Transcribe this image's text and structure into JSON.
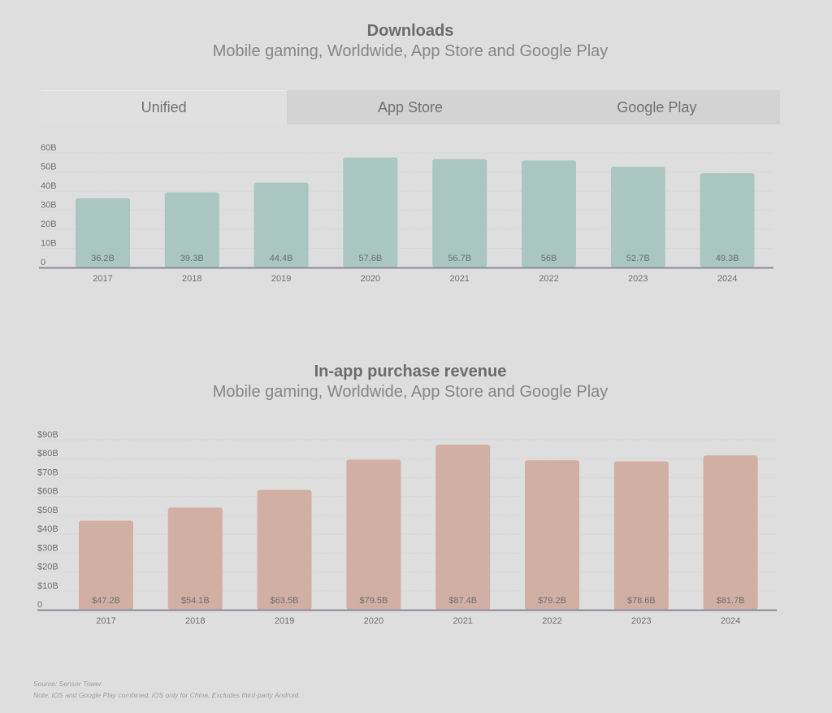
{
  "charts_text": {
    "downloads": {
      "title": "Downloads",
      "subtitle": "Mobile gaming, Worldwide, App Store and Google Play"
    },
    "revenue": {
      "title": "In-app purchase revenue",
      "subtitle": "Mobile gaming, Worldwide, App Store and Google Play"
    }
  },
  "tabs": [
    {
      "label": "Unified",
      "active": true
    },
    {
      "label": "App Store",
      "active": false
    },
    {
      "label": "Google Play",
      "active": false
    }
  ],
  "footer": {
    "source": "Source: Sensor Tower",
    "note": "Note: iOS and Google Play combined. iOS only for China. Excludes third-party Android."
  },
  "colors": {
    "downloads_bar": "#a9c6c0",
    "revenue_bar": "#d2afa3",
    "axis": "#8a8a99",
    "grid": "#d2d2d2"
  },
  "chart_data": [
    {
      "type": "bar",
      "title": "Downloads",
      "subtitle": "Mobile gaming, Worldwide, App Store and Google Play",
      "categories": [
        "2017",
        "2018",
        "2019",
        "2020",
        "2021",
        "2022",
        "2023",
        "2024"
      ],
      "values": [
        36.2,
        39.3,
        44.4,
        57.6,
        56.7,
        56,
        52.7,
        49.3
      ],
      "value_labels": [
        "36.2B",
        "39.3B",
        "44.4B",
        "57.6B",
        "56.7B",
        "56B",
        "52.7B",
        "49.3B"
      ],
      "yticks": [
        0,
        10,
        20,
        30,
        40,
        50,
        60
      ],
      "ytick_labels": [
        "0",
        "10B",
        "20B",
        "30B",
        "40B",
        "50B",
        "60B"
      ],
      "ylim": [
        0,
        60
      ],
      "grid": true,
      "xlabel": "",
      "ylabel": ""
    },
    {
      "type": "bar",
      "title": "In-app purchase revenue",
      "subtitle": "Mobile gaming, Worldwide, App Store and Google Play",
      "categories": [
        "2017",
        "2018",
        "2019",
        "2020",
        "2021",
        "2022",
        "2023",
        "2024"
      ],
      "values": [
        47.2,
        54.1,
        63.5,
        79.5,
        87.4,
        79.2,
        78.6,
        81.7
      ],
      "value_labels": [
        "$47.2B",
        "$54.1B",
        "$63.5B",
        "$79.5B",
        "$87.4B",
        "$79.2B",
        "$78.6B",
        "$81.7B"
      ],
      "yticks": [
        0,
        10,
        20,
        30,
        40,
        50,
        60,
        70,
        80,
        90
      ],
      "ytick_labels": [
        "0",
        "$10B",
        "$20B",
        "$30B",
        "$40B",
        "$50B",
        "$60B",
        "$70B",
        "$80B",
        "$90B"
      ],
      "ylim": [
        0,
        90
      ],
      "grid": true,
      "xlabel": "",
      "ylabel": ""
    }
  ]
}
